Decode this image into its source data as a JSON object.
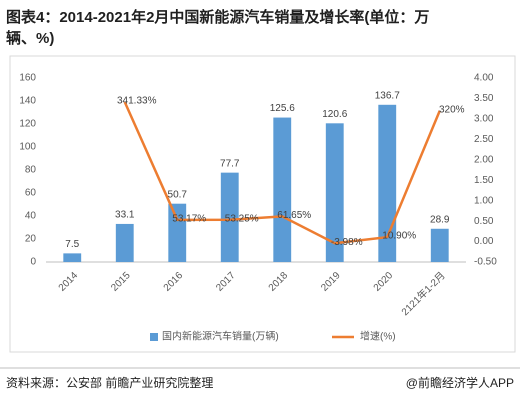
{
  "chart_data": {
    "type": "bar_line",
    "title_lines": [
      "图表4：2014-2021年2月中国新能源汽车销量及增长率(单位：万",
      "辆、%)"
    ],
    "source": "资料来源：公安部 前瞻产业研究院整理",
    "watermark": "@前瞻经济学人APP",
    "categories": [
      "2014",
      "2015",
      "2016",
      "2017",
      "2018",
      "2019",
      "2020",
      "2121年1-2月"
    ],
    "series": [
      {
        "name": "国内新能源汽车销量(万辆)",
        "type": "bar",
        "color": "#5b9bd5",
        "values": [
          7.5,
          33.1,
          50.7,
          77.7,
          125.6,
          120.6,
          136.7,
          28.9
        ]
      },
      {
        "name": "增速(%)",
        "type": "line",
        "axis": "y2",
        "color": "#ed7d31",
        "values": [
          null,
          3.4133,
          0.5317,
          0.5325,
          0.6165,
          -0.0398,
          0.109,
          3.2
        ],
        "value_labels": [
          null,
          "341.33%",
          "53.17%",
          "53.25%",
          "61.65%",
          "-3.98%",
          "10.90%",
          "320%"
        ]
      }
    ],
    "ylim": [
      0,
      160
    ],
    "yticks": [
      0,
      20,
      40,
      60,
      80,
      100,
      120,
      140,
      160
    ],
    "y2lim": [
      -0.5,
      4
    ],
    "y2ticks": [
      {
        "value": -0.5,
        "label": "-0.50"
      },
      {
        "value": 0,
        "label": "0.00"
      },
      {
        "value": 0.5,
        "label": "0.50"
      },
      {
        "value": 1,
        "label": "1.00"
      },
      {
        "value": 1.5,
        "label": "1.50"
      },
      {
        "value": 2,
        "label": "2.00"
      },
      {
        "value": 2.5,
        "label": "2.50"
      },
      {
        "value": 3,
        "label": "3.00"
      },
      {
        "value": 3.5,
        "label": "3.50"
      },
      {
        "value": 4,
        "label": "4.00"
      }
    ],
    "grid": false,
    "legend": "bottom"
  }
}
